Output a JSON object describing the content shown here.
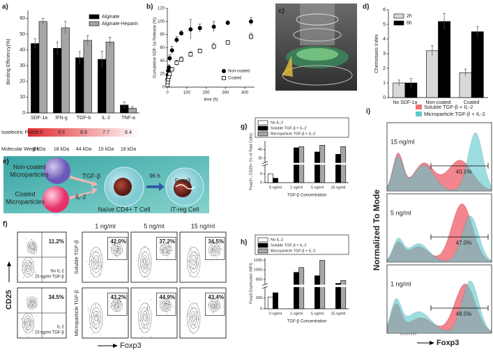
{
  "chart_data": [
    {
      "type": "bar",
      "panel": "a)",
      "ylabel": "Binding Efficiency(%)",
      "categories": [
        "SDF-1a",
        "IFN-g",
        "TGF-b",
        "IL-2",
        "TNF-a"
      ],
      "ylim": [
        0,
        65
      ],
      "yticks": [
        0,
        10,
        20,
        30,
        40,
        50,
        60
      ],
      "legend": "upper right",
      "series": [
        {
          "name": "Alginate",
          "color": "#000000",
          "values": [
            44,
            41,
            35,
            34,
            5
          ],
          "errors": [
            3,
            4,
            4,
            5,
            2
          ]
        },
        {
          "name": "Alginate-Heparin",
          "color": "#a6a6a6",
          "values": [
            58,
            54,
            46,
            45,
            3
          ],
          "errors": [
            2,
            4,
            3,
            3,
            1
          ]
        }
      ],
      "rows": [
        {
          "label": "Isoelectric Point",
          "values": [
            9.9,
            9.5,
            8.9,
            7.7,
            6.4
          ]
        },
        {
          "label": "Molecular Weight",
          "values": [
            "8 kDa",
            "18 kDa",
            "44 kDa",
            "15 kDa",
            "18 kDa"
          ]
        }
      ]
    },
    {
      "type": "scatter",
      "panel": "b)",
      "xlabel": "time (h)",
      "ylabel": "Cumulative SDF-1α Release (%)",
      "x": [
        1,
        2,
        4,
        8,
        12,
        24,
        48,
        72,
        120,
        168,
        240,
        312,
        432
      ],
      "xlim": [
        0,
        450
      ],
      "xticks": [
        0,
        100,
        200,
        300,
        400
      ],
      "ylim": [
        0,
        120
      ],
      "yticks": [
        0,
        20,
        40,
        60,
        80,
        100,
        120
      ],
      "legend": "lower right",
      "series": [
        {
          "name": "Non-coated",
          "color": "#000000",
          "marker": "circle",
          "filled": true,
          "values": [
            12,
            18,
            25,
            30,
            44,
            56,
            72,
            82,
            88,
            90,
            92,
            98,
            100
          ],
          "errors": [
            2,
            3,
            4,
            4,
            5,
            6,
            5,
            4,
            15,
            6,
            8,
            3,
            6
          ]
        },
        {
          "name": "Coated",
          "color": "#000000",
          "marker": "square",
          "filled": false,
          "values": [
            3,
            8,
            12,
            16,
            20,
            27,
            37,
            42,
            50,
            55,
            62,
            68,
            77
          ],
          "errors": [
            1,
            2,
            2,
            3,
            3,
            3,
            4,
            4,
            4,
            3,
            5,
            3,
            5
          ]
        }
      ]
    },
    {
      "type": "bar",
      "panel": "d)",
      "ylabel": "Chemotaxis Index",
      "categories": [
        "No SDF-1a",
        "Non-coated",
        "Coated"
      ],
      "ylim": [
        0,
        6
      ],
      "yticks": [
        0,
        1,
        2,
        3,
        4,
        5,
        6
      ],
      "legend": "upper left",
      "series": [
        {
          "name": "2h",
          "color": "#d9d9d9",
          "values": [
            1.0,
            3.2,
            1.7
          ],
          "errors": [
            0.2,
            0.35,
            0.25
          ]
        },
        {
          "name": "6h",
          "color": "#000000",
          "values": [
            1.0,
            5.2,
            4.5
          ],
          "errors": [
            0.3,
            0.55,
            0.35
          ]
        }
      ]
    },
    {
      "type": "bar",
      "panel": "g)",
      "ylabel": "Foxp3+, CD25+ (% of Total Cells)",
      "xlabel": "TGF-β Concentration",
      "categories": [
        "0 ng/ml",
        "1 ng/ml",
        "5 ng/ml",
        "15 ng/ml"
      ],
      "ylim": [
        0,
        50
      ],
      "ybreak": [
        10,
        25
      ],
      "yticks": [
        0,
        5,
        30,
        40
      ],
      "legend": "top",
      "series": [
        {
          "name": "No IL-2",
          "color": "#ffffff",
          "values": [
            5,
            null,
            null,
            null
          ]
        },
        {
          "name": "Soluble TGF-β + IL-2",
          "color": "#000000",
          "values": [
            2.5,
            42,
            37.2,
            34.5
          ]
        },
        {
          "name": "Microparticle TGF-β + IL-2",
          "color": "#a6a6a6",
          "values": [
            null,
            43.2,
            44.9,
            43.4
          ]
        }
      ]
    },
    {
      "type": "bar",
      "panel": "h)",
      "ylabel": "Foxp3 Expression (MFI)",
      "xlabel": "TGF-β Concentration",
      "categories": [
        "0 ng/ml",
        "1 ng/ml",
        "5 ng/ml",
        "15 ng/ml"
      ],
      "ylim": [
        0,
        1250
      ],
      "ybreak": [
        400,
        700
      ],
      "yticks": [
        0,
        200,
        800,
        1000,
        1200
      ],
      "legend": "top",
      "series": [
        {
          "name": "No IL-2",
          "color": "#ffffff",
          "values": [
            220,
            null,
            null,
            null
          ]
        },
        {
          "name": "Soluble TGF-β + IL-2",
          "color": "#000000",
          "values": [
            300,
            950,
            880,
            720
          ]
        },
        {
          "name": "Microparticle TGF-β + IL-2",
          "color": "#a6a6a6",
          "values": [
            null,
            1050,
            1200,
            780
          ]
        }
      ]
    }
  ],
  "illustration_c": {
    "panel": "c)"
  },
  "diagram_e": {
    "panel": "e)",
    "noncoated": [
      "Non-coated",
      "Microparticles"
    ],
    "coated": [
      "Coated",
      "Microparticles"
    ],
    "signal_1": "TGF-β",
    "signal_2": "IL-2",
    "time": "96 h",
    "naive": "Naïve CD4+ T Cell",
    "treg": "iT-reg Cell",
    "marker": "Foxp3"
  },
  "flow_f": {
    "panel": "f)",
    "columns": [
      "1 ng/ml",
      "5 ng/ml",
      "15 ng/ml"
    ],
    "rows": [
      {
        "label": "Soluble TGF-β",
        "control": "11.2%",
        "control_text": [
          "No IL-2",
          "15 ng/ml TGF-β"
        ],
        "percents": [
          "42.0%",
          "37.2%",
          "34.5%"
        ]
      },
      {
        "label": "Microparticle TGF-β",
        "control": "34.5%",
        "control_text": [
          "IL-2",
          "15 ng/ml TGF-β"
        ],
        "percents": [
          "43.2%",
          "44.9%",
          "43.4%"
        ]
      }
    ],
    "y_axis": "CD25",
    "x_axis": "Foxp3"
  },
  "histogram_i": {
    "panel": "i)",
    "legend": [
      {
        "name": "Soluble TGF-β + IL-2",
        "color": "#f0707a"
      },
      {
        "name": "Microparticle TGF-β + IL-2",
        "color": "#5cc8cc"
      }
    ],
    "rows": [
      {
        "label": "15 ng/ml",
        "percent": "40.1%"
      },
      {
        "label": "5 ng/ml",
        "percent": "47.0%"
      },
      {
        "label": "1 ng/ml",
        "percent": "48.5%"
      }
    ],
    "y_axis": "Normalized To Mode",
    "x_axis": "Foxp3"
  }
}
